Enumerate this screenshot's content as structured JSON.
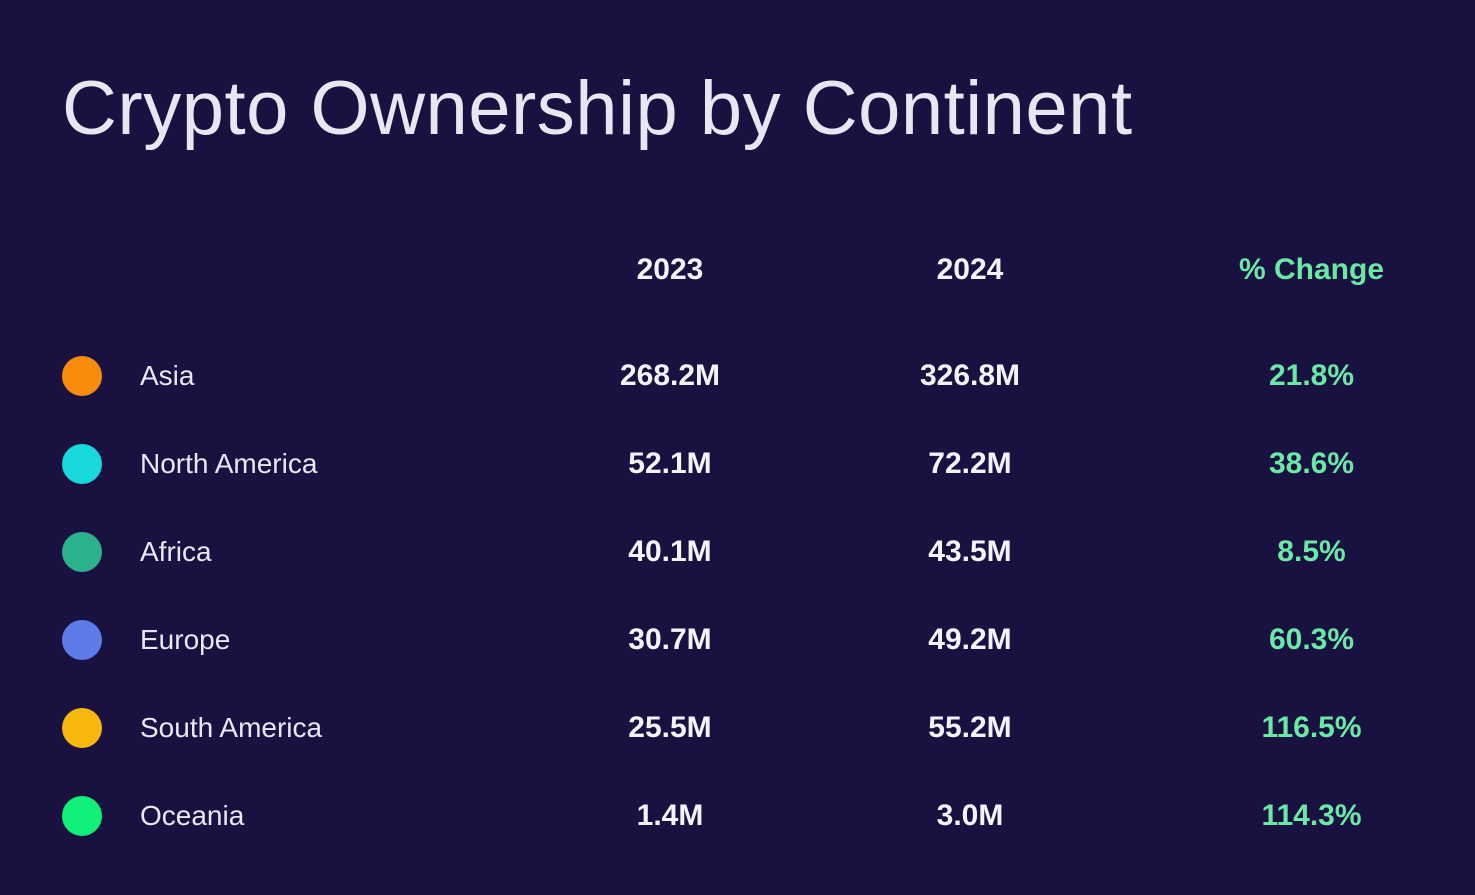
{
  "page": {
    "title": "Crypto Ownership by Continent",
    "background_color": "#191140",
    "text_color": "#F5F3FA",
    "accent_green": "#6BE7A6"
  },
  "table": {
    "columns": [
      "2023",
      "2024",
      "% Change"
    ],
    "rows": [
      {
        "label": "Asia",
        "dot_color": "#F78C0D",
        "y2023": "268.2M",
        "y2024": "326.8M",
        "change": "21.8%"
      },
      {
        "label": "North America",
        "dot_color": "#18D8DB",
        "y2023": "52.1M",
        "y2024": "72.2M",
        "change": "38.6%"
      },
      {
        "label": "Africa",
        "dot_color": "#2BB28D",
        "y2023": "40.1M",
        "y2024": "43.5M",
        "change": "8.5%"
      },
      {
        "label": "Europe",
        "dot_color": "#5E7CE8",
        "y2023": "30.7M",
        "y2024": "49.2M",
        "change": "60.3%"
      },
      {
        "label": "South America",
        "dot_color": "#F8B70E",
        "y2023": "25.5M",
        "y2024": "55.2M",
        "change": "116.5%"
      },
      {
        "label": "Oceania",
        "dot_color": "#10F078",
        "y2023": "1.4M",
        "y2024": "3.0M",
        "change": "114.3%"
      }
    ]
  },
  "chart_data": {
    "type": "table",
    "title": "Crypto Ownership by Continent",
    "categories": [
      "Asia",
      "North America",
      "Africa",
      "Europe",
      "South America",
      "Oceania"
    ],
    "series": [
      {
        "name": "2023",
        "unit": "M",
        "values": [
          268.2,
          52.1,
          40.1,
          30.7,
          25.5,
          1.4
        ]
      },
      {
        "name": "2024",
        "unit": "M",
        "values": [
          326.8,
          72.2,
          43.5,
          49.2,
          55.2,
          3.0
        ]
      },
      {
        "name": "% Change",
        "unit": "%",
        "values": [
          21.8,
          38.6,
          8.5,
          60.3,
          116.5,
          114.3
        ]
      }
    ],
    "legend_colors": [
      "#F78C0D",
      "#18D8DB",
      "#2BB28D",
      "#5E7CE8",
      "#F8B70E",
      "#10F078"
    ],
    "layout": {
      "grid": false,
      "legend_position": "left-of-rows"
    }
  }
}
